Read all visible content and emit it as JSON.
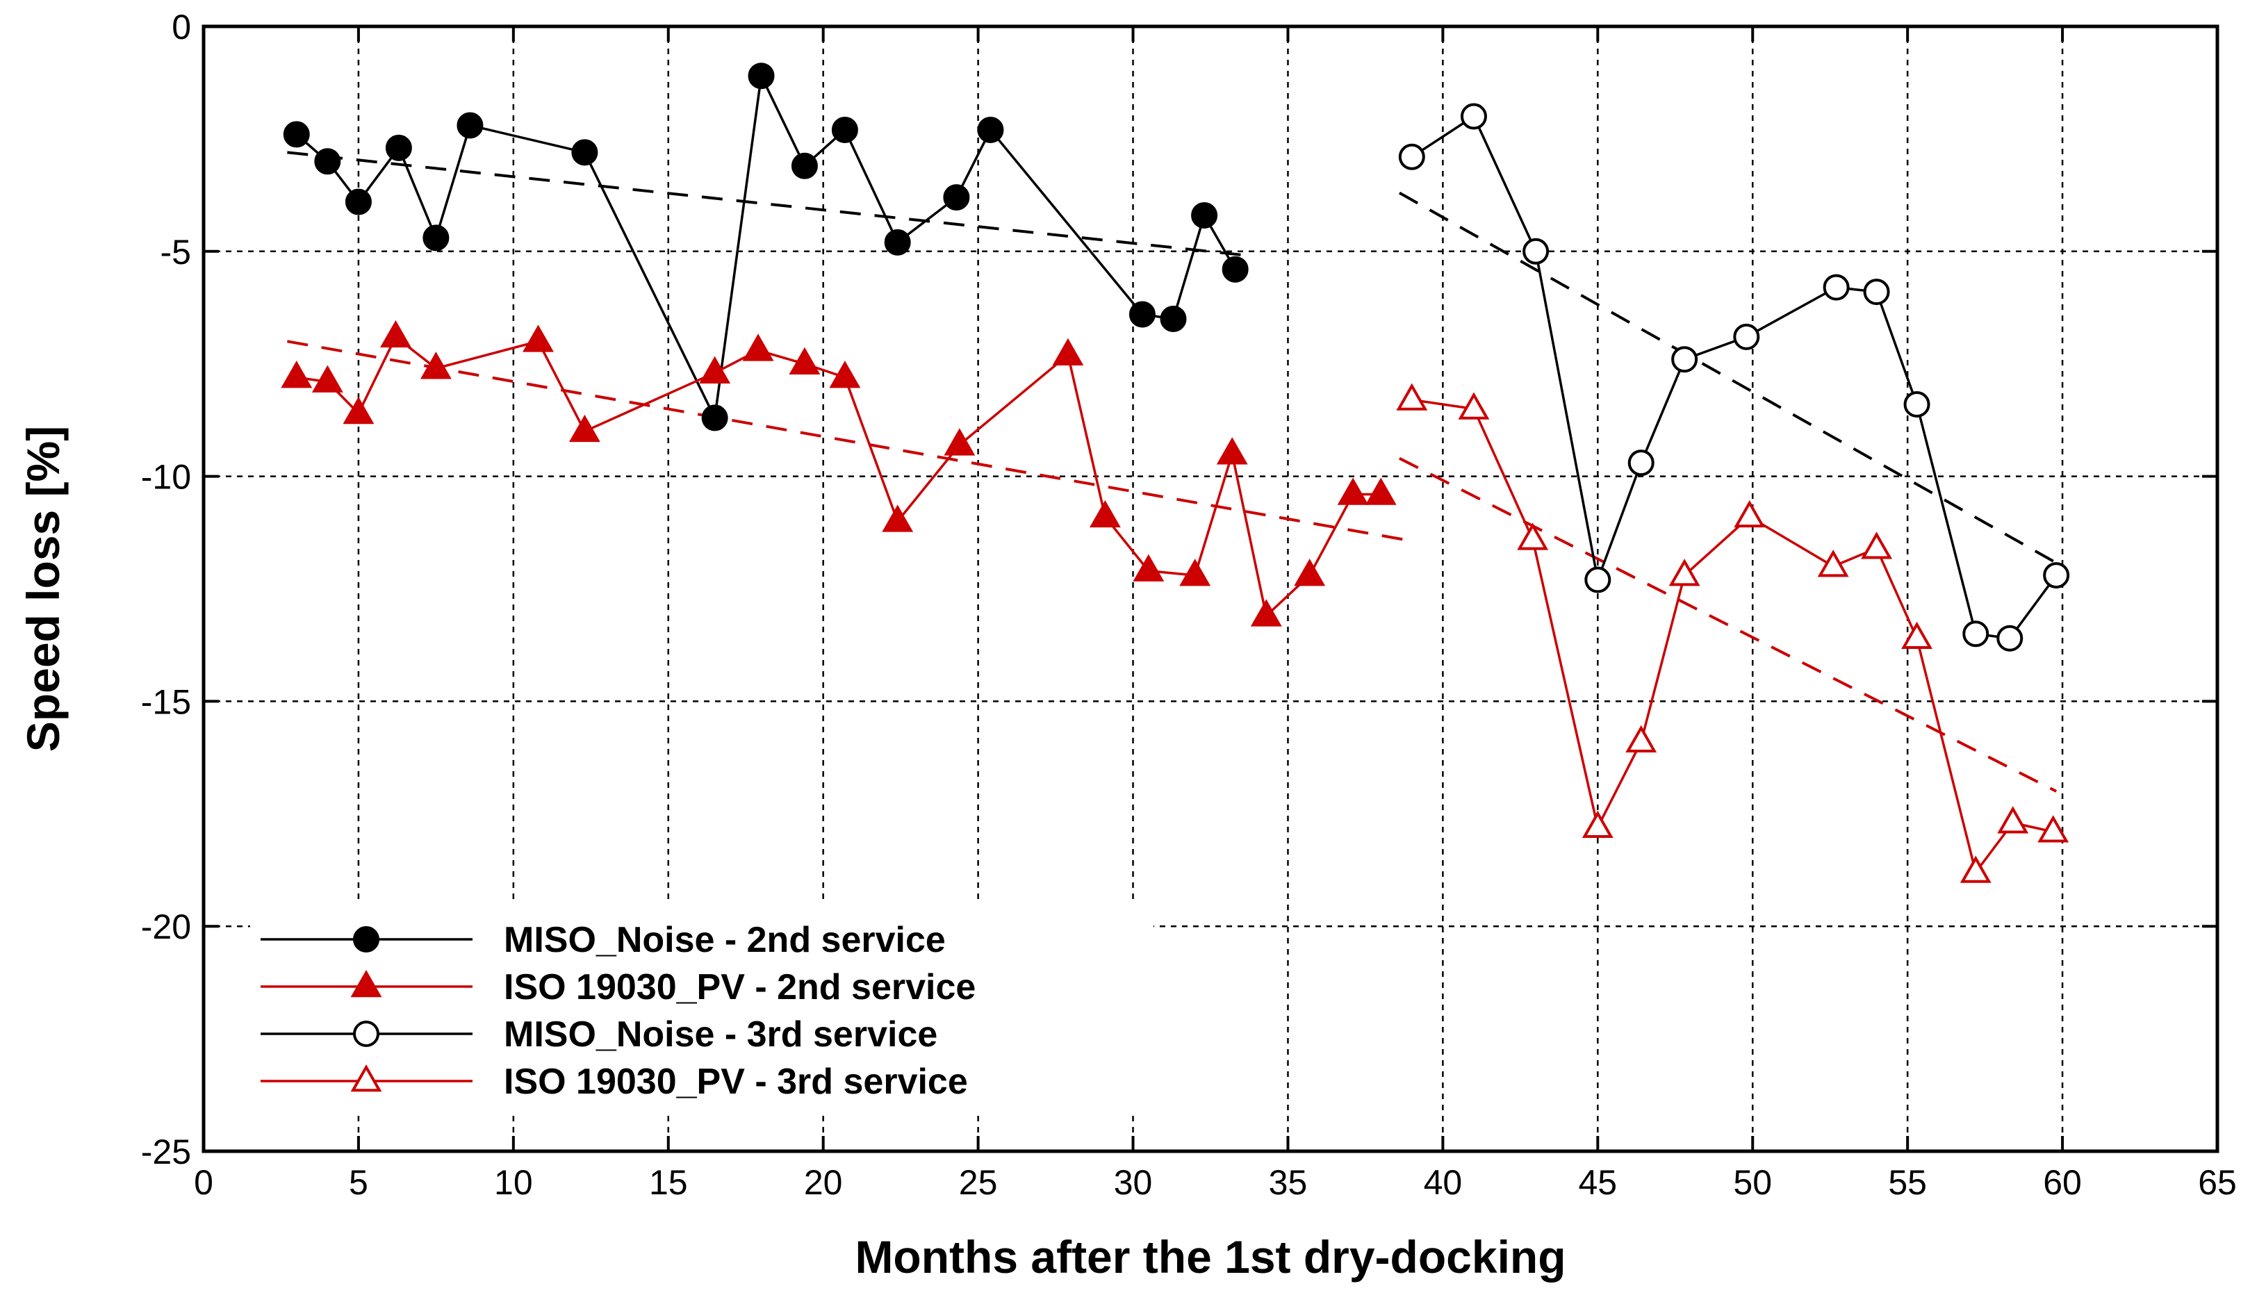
{
  "chart_data": {
    "type": "line",
    "title": "",
    "xlabel": "Months after the 1st dry-docking",
    "ylabel": "Speed loss [%]",
    "xlim": [
      0,
      65
    ],
    "ylim": [
      -25,
      0
    ],
    "xticks": [
      "0",
      "5",
      "10",
      "15",
      "20",
      "25",
      "30",
      "35",
      "40",
      "45",
      "50",
      "55",
      "60",
      "65"
    ],
    "yticks": [
      "0",
      "-5",
      "-10",
      "-15",
      "-20",
      "-25"
    ],
    "grid": true,
    "legend_position": "bottom-left",
    "series": [
      {
        "name": "MISO_Noise - 2nd service",
        "color": "#000000",
        "marker": "circle",
        "filled": true,
        "x": [
          3.0,
          4.0,
          5.0,
          6.3,
          7.5,
          8.6,
          12.3,
          16.5,
          18.0,
          19.4,
          20.7,
          22.4,
          24.3,
          25.4,
          30.3,
          31.3,
          32.3,
          33.3
        ],
        "y": [
          -2.4,
          -3.0,
          -3.9,
          -2.7,
          -4.7,
          -2.2,
          -2.8,
          -8.7,
          -1.1,
          -3.1,
          -2.3,
          -4.8,
          -3.8,
          -2.3,
          -6.4,
          -6.5,
          -4.2,
          -5.4
        ],
        "trend": {
          "x": [
            2.7,
            33.8
          ],
          "y": [
            -2.8,
            -5.1
          ],
          "color": "#000000"
        }
      },
      {
        "name": "ISO 19030_PV - 2nd service",
        "color": "#cc0000",
        "marker": "triangle",
        "filled": true,
        "x": [
          3.0,
          4.0,
          5.0,
          6.2,
          7.5,
          10.8,
          12.3,
          16.5,
          17.9,
          19.4,
          20.7,
          22.4,
          24.4,
          27.9,
          29.1,
          30.5,
          32.0,
          33.2,
          34.3,
          35.7,
          37.1,
          38.0
        ],
        "y": [
          -7.8,
          -7.9,
          -8.6,
          -6.9,
          -7.6,
          -7.0,
          -9.0,
          -7.7,
          -7.2,
          -7.5,
          -7.8,
          -11.0,
          -9.3,
          -7.3,
          -10.9,
          -12.1,
          -12.2,
          -9.5,
          -13.1,
          -12.2,
          -10.4,
          -10.4
        ],
        "trend": {
          "x": [
            2.7,
            38.7
          ],
          "y": [
            -7.0,
            -11.4
          ],
          "color": "#cc0000"
        }
      },
      {
        "name": "MISO_Noise - 3rd service",
        "color": "#000000",
        "marker": "circle",
        "filled": false,
        "x": [
          39.0,
          41.0,
          43.0,
          45.0,
          46.4,
          47.8,
          49.8,
          52.7,
          54.0,
          55.3,
          57.2,
          58.3,
          59.8
        ],
        "y": [
          -2.9,
          -2.0,
          -5.0,
          -12.3,
          -9.7,
          -7.4,
          -6.9,
          -5.8,
          -5.9,
          -8.4,
          -13.5,
          -13.6,
          -12.2
        ],
        "trend": {
          "x": [
            38.6,
            60.0
          ],
          "y": [
            -3.7,
            -12.0
          ],
          "color": "#000000"
        }
      },
      {
        "name": "ISO 19030_PV - 3rd service",
        "color": "#cc0000",
        "marker": "triangle",
        "filled": false,
        "x": [
          39.0,
          41.0,
          42.9,
          45.0,
          46.4,
          47.8,
          49.9,
          52.6,
          54.0,
          55.3,
          57.2,
          58.4,
          59.7
        ],
        "y": [
          -8.3,
          -8.5,
          -11.4,
          -17.8,
          -15.9,
          -12.2,
          -10.9,
          -12.0,
          -11.6,
          -13.6,
          -18.8,
          -17.7,
          -17.9
        ],
        "trend": {
          "x": [
            38.6,
            59.8
          ],
          "y": [
            -9.6,
            -17.0
          ],
          "color": "#cc0000"
        }
      }
    ]
  }
}
